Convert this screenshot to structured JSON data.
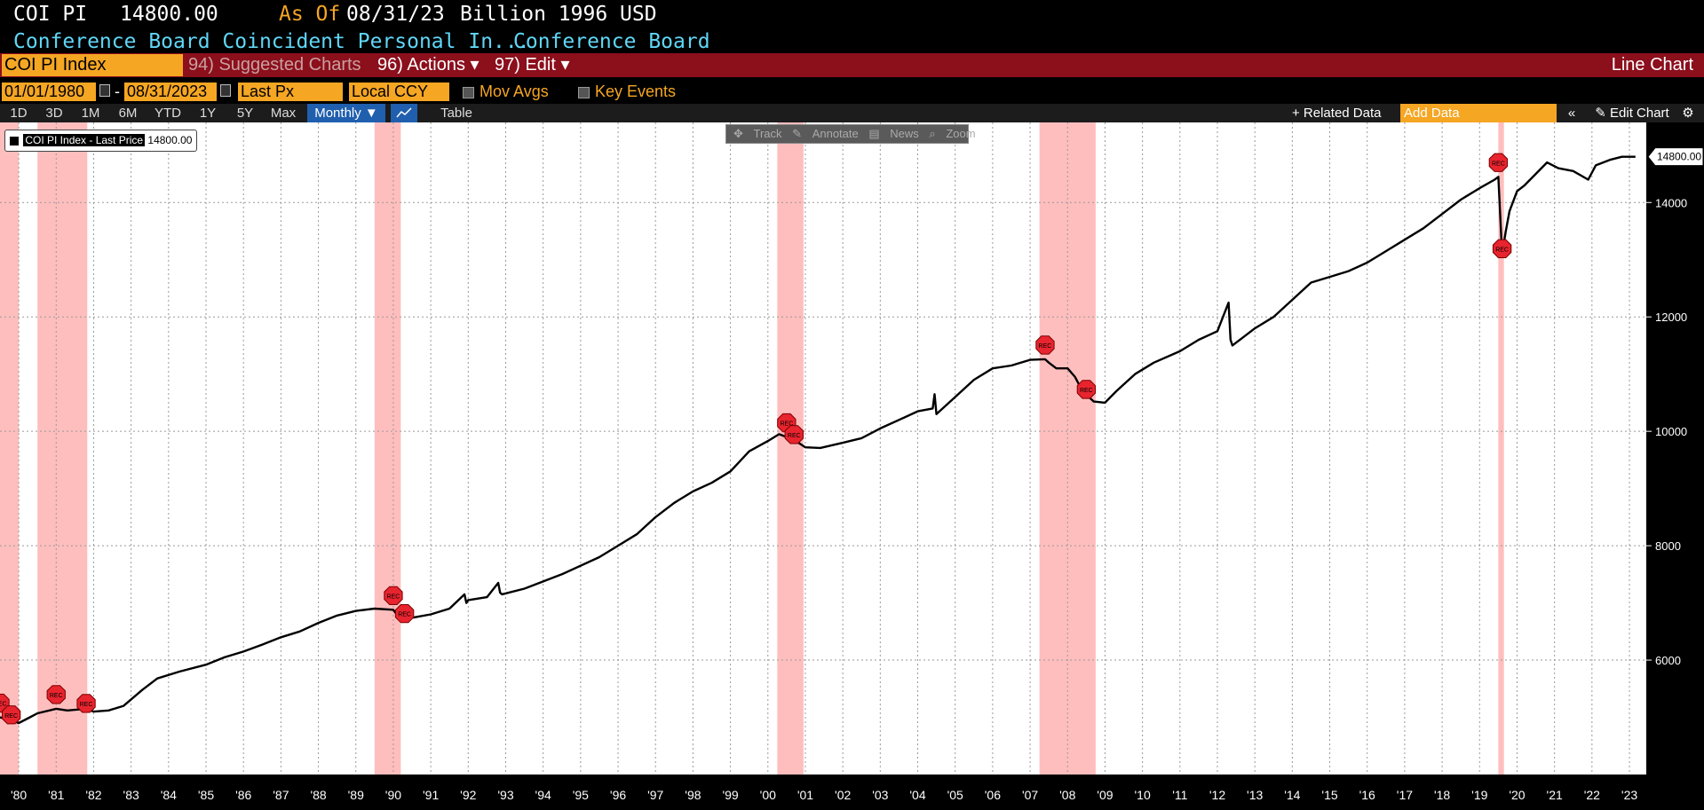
{
  "header": {
    "ticker": "COI PI",
    "last_value": "14800.00",
    "as_of_label": "As Of",
    "as_of_date": "08/31/23",
    "units": "Billion 1996 USD",
    "description": "Conference Board Coincident Personal In...",
    "source": "Conference Board"
  },
  "toolbar": {
    "security": "COI PI Index",
    "suggested": "94) Suggested Charts",
    "actions": "96) Actions ▾",
    "edit": "97) Edit ▾",
    "chart_type": "Line Chart"
  },
  "controls": {
    "start_date": "01/01/1980",
    "dash": "-",
    "end_date": "08/31/2023",
    "field": "Last Px",
    "currency": "Local CCY",
    "mov_avgs": "Mov Avgs",
    "key_events": "Key Events"
  },
  "timebar": {
    "ranges": [
      "1D",
      "3D",
      "1M",
      "6M",
      "YTD",
      "1Y",
      "5Y",
      "Max"
    ],
    "frequency": "Monthly ▼",
    "table": "Table",
    "related": "+ Related Data",
    "add_data_placeholder": "Add Data",
    "edit_chart": "Edit Chart"
  },
  "tools": [
    "Track",
    "Annotate",
    "News",
    "Zoom"
  ],
  "legend": {
    "label": "COI PI Index - Last Price",
    "value": "14800.00"
  },
  "colors": {
    "accent": "#f5a623",
    "bar": "#8c0f1c",
    "cyan": "#5fd7f7",
    "recession": "#ffb3b3"
  },
  "chart_data": {
    "type": "line",
    "series": [
      {
        "name": "COI PI Index - Last Price",
        "x": [
          1980.0,
          1980.3,
          1980.5,
          1980.8,
          1981.0,
          1981.5,
          1981.8,
          1982.3,
          1982.5,
          1982.9,
          1983.3,
          1983.8,
          1984.2,
          1984.8,
          1985.5,
          1986.0,
          1986.5,
          1987.0,
          1987.5,
          1988.0,
          1988.5,
          1989.0,
          1989.5,
          1990.0,
          1990.5,
          1990.6,
          1990.8,
          1991.0,
          1991.5,
          1992.0,
          1992.4,
          1992.45,
          1992.5,
          1993.0,
          1993.3,
          1993.35,
          1993.4,
          1994.0,
          1995.0,
          1996.0,
          1996.5,
          1997.0,
          1997.5,
          1998.0,
          1998.5,
          1999.0,
          1999.5,
          2000.0,
          2000.5,
          2000.8,
          2001.2,
          2001.5,
          2001.9,
          2002.5,
          2003.0,
          2003.5,
          2004.0,
          2004.5,
          2004.9,
          2004.95,
          2005.0,
          2005.5,
          2006.0,
          2006.5,
          2007.0,
          2007.5,
          2007.9,
          2008.0,
          2008.2,
          2008.5,
          2008.7,
          2008.9,
          2009.2,
          2009.5,
          2009.8,
          2010.3,
          2010.8,
          2011.5,
          2012.0,
          2012.5,
          2012.8,
          2012.85,
          2012.9,
          2013.0,
          2013.5,
          2014.0,
          2014.5,
          2015.0,
          2015.5,
          2016.0,
          2016.5,
          2017.0,
          2017.5,
          2018.0,
          2018.5,
          2019.0,
          2019.5,
          2019.9,
          2020.0,
          2020.1,
          2020.2,
          2020.3,
          2020.5,
          2020.7,
          2021.0,
          2021.3,
          2021.6,
          2022.0,
          2022.4,
          2022.6,
          2022.8,
          2023.0,
          2023.3,
          2023.66
        ],
        "y": [
          5000,
          4950,
          4900,
          5000,
          5070,
          5150,
          5120,
          5150,
          5100,
          5120,
          5200,
          5480,
          5680,
          5800,
          5920,
          6050,
          6150,
          6270,
          6400,
          6500,
          6650,
          6780,
          6860,
          6900,
          6880,
          6790,
          6720,
          6740,
          6800,
          6900,
          7150,
          7000,
          7050,
          7100,
          7350,
          7180,
          7150,
          7250,
          7500,
          7800,
          8000,
          8200,
          8500,
          8750,
          8950,
          9100,
          9300,
          9650,
          9830,
          9950,
          9850,
          9720,
          9710,
          9800,
          9880,
          10050,
          10200,
          10350,
          10400,
          10650,
          10300,
          10600,
          10900,
          11100,
          11150,
          11250,
          11260,
          11200,
          11100,
          11100,
          10950,
          10700,
          10520,
          10500,
          10700,
          11000,
          11200,
          11400,
          11600,
          11750,
          12250,
          11600,
          11500,
          11550,
          11800,
          12000,
          12300,
          12600,
          12700,
          12800,
          12950,
          13150,
          13350,
          13550,
          13800,
          14050,
          14250,
          14400,
          14450,
          13100,
          13500,
          13850,
          14200,
          14300,
          14500,
          14700,
          14600,
          14550,
          14400,
          14650,
          14700,
          14750,
          14800,
          14800
        ]
      }
    ],
    "recession_bands": [
      [
        1980.0,
        1980.5
      ],
      [
        1981.0,
        1982.33
      ],
      [
        1990.0,
        1990.7
      ],
      [
        2000.75,
        2001.45
      ],
      [
        2007.75,
        2009.25
      ],
      [
        2020.0,
        2020.15
      ]
    ],
    "rec_markers": [
      1980.0,
      1980.3,
      1981.5,
      1982.3,
      1990.5,
      1990.8,
      2001.0,
      2001.2,
      2007.9,
      2009.0,
      2020.0,
      2020.1
    ],
    "current_value": "14800.00",
    "y_ticks": [
      "6000",
      "8000",
      "10000",
      "12000",
      "14000"
    ],
    "x_ticks": [
      "'80",
      "'81",
      "'82",
      "'83",
      "'84",
      "'85",
      "'86",
      "'87",
      "'88",
      "'89",
      "'90",
      "'91",
      "'92",
      "'93",
      "'94",
      "'95",
      "'96",
      "'97",
      "'98",
      "'99",
      "'00",
      "'01",
      "'02",
      "'03",
      "'04",
      "'05",
      "'06",
      "'07",
      "'08",
      "'09",
      "'10",
      "'11",
      "'12",
      "'13",
      "'14",
      "'15",
      "'16",
      "'17",
      "'18",
      "'19",
      "'20",
      "'21",
      "'22",
      "'23"
    ],
    "x_range": [
      1980.0,
      2023.95
    ],
    "y_range": [
      4000,
      15400
    ],
    "grid": true
  }
}
